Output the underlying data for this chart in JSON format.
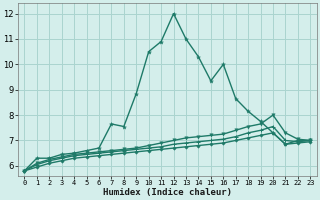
{
  "xlabel": "Humidex (Indice chaleur)",
  "xlim": [
    -0.5,
    23.5
  ],
  "ylim": [
    5.6,
    12.4
  ],
  "xticks": [
    0,
    1,
    2,
    3,
    4,
    5,
    6,
    7,
    8,
    9,
    10,
    11,
    12,
    13,
    14,
    15,
    16,
    17,
    18,
    19,
    20,
    21,
    22,
    23
  ],
  "yticks": [
    6,
    7,
    8,
    9,
    10,
    11,
    12
  ],
  "bg_color": "#d4eeeb",
  "grid_color": "#aad4cf",
  "line_color": "#1e7a68",
  "line1_y": [
    5.8,
    6.3,
    6.3,
    6.45,
    6.5,
    6.6,
    6.7,
    7.65,
    7.55,
    8.85,
    10.5,
    10.9,
    12.0,
    11.0,
    10.3,
    9.35,
    10.0,
    8.65,
    8.15,
    7.75,
    7.3,
    6.85,
    7.0,
    7.0
  ],
  "line2_y": [
    5.8,
    6.1,
    6.25,
    6.35,
    6.45,
    6.5,
    6.55,
    6.6,
    6.65,
    6.7,
    6.8,
    6.9,
    7.0,
    7.1,
    7.15,
    7.2,
    7.25,
    7.4,
    7.55,
    7.65,
    8.0,
    7.3,
    7.05,
    7.0
  ],
  "line3_y": [
    5.8,
    6.05,
    6.2,
    6.3,
    6.4,
    6.45,
    6.5,
    6.55,
    6.6,
    6.65,
    6.7,
    6.75,
    6.85,
    6.9,
    6.95,
    7.0,
    7.05,
    7.15,
    7.3,
    7.4,
    7.55,
    7.0,
    6.95,
    7.0
  ],
  "line4_y": [
    5.8,
    5.95,
    6.1,
    6.2,
    6.3,
    6.35,
    6.4,
    6.45,
    6.5,
    6.55,
    6.6,
    6.65,
    6.7,
    6.75,
    6.8,
    6.85,
    6.9,
    7.0,
    7.1,
    7.2,
    7.3,
    6.85,
    6.9,
    6.95
  ]
}
